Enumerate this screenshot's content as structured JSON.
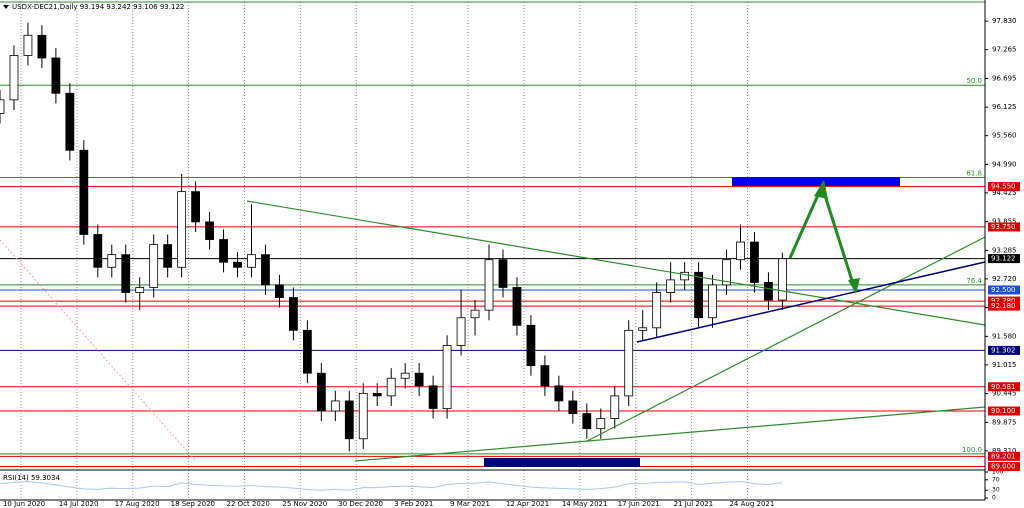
{
  "chart_data": {
    "type": "candlestick",
    "title": "USDX-DEC21,Daily  93.194 93.242 93.106 93.122",
    "x": [
      0,
      6,
      12,
      18,
      24,
      30,
      36,
      42,
      48,
      54,
      60,
      66,
      72,
      78,
      84,
      90,
      96,
      102,
      108,
      114,
      120,
      126,
      132,
      138,
      144,
      150,
      156,
      162,
      168,
      174,
      180,
      186,
      192,
      198,
      204,
      210,
      216,
      222,
      228,
      234,
      240,
      246,
      252,
      258,
      264,
      270,
      276,
      282,
      288,
      294,
      300,
      306,
      312,
      318,
      324,
      330,
      336
    ],
    "open": [
      96.0,
      96.27,
      97.15,
      97.55,
      97.1,
      96.4,
      95.27,
      93.6,
      92.95,
      93.2,
      92.45,
      92.55,
      93.4,
      92.95,
      94.45,
      93.85,
      93.5,
      93.05,
      92.95,
      93.2,
      92.6,
      92.35,
      91.7,
      90.85,
      90.1,
      90.3,
      89.55,
      90.45,
      90.4,
      90.75,
      90.85,
      90.6,
      90.15,
      91.4,
      91.95,
      92.1,
      93.1,
      92.55,
      91.8,
      91.0,
      90.6,
      90.3,
      90.05,
      89.75,
      89.95,
      90.4,
      91.7,
      91.75,
      92.45,
      92.7,
      92.85,
      91.95,
      92.6,
      93.1,
      93.45,
      92.65,
      92.3
    ],
    "high": [
      96.47,
      97.35,
      97.8,
      97.75,
      97.3,
      96.6,
      95.47,
      93.8,
      93.4,
      93.4,
      92.75,
      93.6,
      93.6,
      94.8,
      94.65,
      94.05,
      93.7,
      93.25,
      94.2,
      93.4,
      92.8,
      92.55,
      91.9,
      91.05,
      90.5,
      90.5,
      90.65,
      90.65,
      90.95,
      91.05,
      91.05,
      90.8,
      91.6,
      92.5,
      92.3,
      93.4,
      93.3,
      92.75,
      92.0,
      91.2,
      90.8,
      90.5,
      90.25,
      90.15,
      90.6,
      91.9,
      92.1,
      92.65,
      93.05,
      93.05,
      93.05,
      92.8,
      93.3,
      93.8,
      93.65,
      92.85,
      93.24
    ],
    "low": [
      95.8,
      96.07,
      96.95,
      96.9,
      96.2,
      95.07,
      93.4,
      92.75,
      92.75,
      92.25,
      92.1,
      92.35,
      92.75,
      92.75,
      93.65,
      93.3,
      92.85,
      92.75,
      92.75,
      92.4,
      92.15,
      91.5,
      90.65,
      89.9,
      89.9,
      89.3,
      89.35,
      90.2,
      90.2,
      90.55,
      90.4,
      89.95,
      89.95,
      91.2,
      91.6,
      91.9,
      92.35,
      91.6,
      90.8,
      90.4,
      90.1,
      89.85,
      89.55,
      89.55,
      89.75,
      90.2,
      91.5,
      91.55,
      92.25,
      92.5,
      91.75,
      91.75,
      92.4,
      92.9,
      92.45,
      92.1,
      92.1
    ],
    "close": [
      96.27,
      97.15,
      97.55,
      97.1,
      96.4,
      95.27,
      93.6,
      92.95,
      93.2,
      92.45,
      92.55,
      93.4,
      92.95,
      94.45,
      93.85,
      93.5,
      93.05,
      92.95,
      93.2,
      92.6,
      92.35,
      91.7,
      90.85,
      90.1,
      90.3,
      89.55,
      90.45,
      90.4,
      90.75,
      90.85,
      90.6,
      90.15,
      91.4,
      91.95,
      92.1,
      93.1,
      92.55,
      91.8,
      91.0,
      90.6,
      90.3,
      90.05,
      89.75,
      89.95,
      90.4,
      91.7,
      91.75,
      92.45,
      92.7,
      92.85,
      91.95,
      92.6,
      93.1,
      93.45,
      92.65,
      92.3,
      93.12
    ],
    "xlim": [
      0,
      423
    ],
    "xticks": [
      {
        "value": 9,
        "label": "10 Jun 2020"
      },
      {
        "value": 33,
        "label": "14 Jul 2020"
      },
      {
        "value": 57,
        "label": "17 Aug 2020"
      },
      {
        "value": 81,
        "label": "18 Sep 2020"
      },
      {
        "value": 105,
        "label": "22 Oct 2020"
      },
      {
        "value": 129,
        "label": "25 Nov 2020"
      },
      {
        "value": 153,
        "label": "30 Dec 2020"
      },
      {
        "value": 177,
        "label": "3 Feb 2021"
      },
      {
        "value": 201,
        "label": "9 Mar 2021"
      },
      {
        "value": 225,
        "label": "12 Apr 2021"
      },
      {
        "value": 249,
        "label": "14 May 2021"
      },
      {
        "value": 273,
        "label": "17 Jun 2021"
      },
      {
        "value": 297,
        "label": "21 Jul 2021"
      },
      {
        "value": 321,
        "label": "24 Aug 2021"
      }
    ],
    "ylim": [
      88.99,
      98.21
    ],
    "yticks": [
      {
        "value": 97.83,
        "label": "97.830"
      },
      {
        "value": 97.265,
        "label": "97.265"
      },
      {
        "value": 96.695,
        "label": "96.695"
      },
      {
        "value": 96.125,
        "label": "96.125"
      },
      {
        "value": 95.56,
        "label": "95.560"
      },
      {
        "value": 94.99,
        "label": "94.990"
      },
      {
        "value": 94.425,
        "label": "94.425"
      },
      {
        "value": 93.855,
        "label": "93.855"
      },
      {
        "value": 93.285,
        "label": "93.285"
      },
      {
        "value": 92.72,
        "label": "92.720"
      },
      {
        "value": 92.15,
        "label": "92.150"
      },
      {
        "value": 91.58,
        "label": "91.580"
      },
      {
        "value": 91.015,
        "label": "91.015"
      },
      {
        "value": 90.445,
        "label": "90.445"
      },
      {
        "value": 89.875,
        "label": "89.875"
      },
      {
        "value": 89.31,
        "label": "89.310"
      }
    ],
    "grid": true,
    "up_color": "#ffffff",
    "down_color": "#000000",
    "levels": [
      {
        "value": 94.55,
        "label": "94.550",
        "color": "#e00000"
      },
      {
        "value": 93.75,
        "label": "93.750",
        "color": "#e00000"
      },
      {
        "value": 93.122,
        "label": "93.122",
        "color": "#000000"
      },
      {
        "value": 92.5,
        "label": "92.500",
        "color": "#1a4fd6"
      },
      {
        "value": 92.28,
        "label": "92.280",
        "color": "#e00000"
      },
      {
        "value": 92.18,
        "label": "92.180",
        "color": "#e00000"
      },
      {
        "value": 91.302,
        "label": "91.302",
        "color": "#000080"
      },
      {
        "value": 90.581,
        "label": "90.581",
        "color": "#e00000"
      },
      {
        "value": 90.1,
        "label": "90.100",
        "color": "#e00000"
      },
      {
        "value": 89.201,
        "label": "89.201",
        "color": "#e00000"
      },
      {
        "value": 89.0,
        "label": "89.000",
        "color": "#e00000"
      }
    ],
    "fib_levels": [
      {
        "value": 96.56,
        "label": "50.0"
      },
      {
        "value": 94.73,
        "label": "61.8"
      },
      {
        "value": 92.6,
        "label": "76.4"
      },
      {
        "value": 89.25,
        "label": "100.0"
      }
    ],
    "fib_color": "#2e8b2e",
    "rsi": {
      "title": "RSI(14) 59.3034",
      "ylim": [
        0,
        100
      ],
      "yticks": [
        100,
        70,
        30,
        0
      ],
      "color": "#a8c8f0",
      "values": [
        55,
        60,
        63,
        58,
        50,
        42,
        35,
        33,
        38,
        36,
        38,
        46,
        44,
        58,
        52,
        49,
        46,
        45,
        48,
        44,
        42,
        38,
        33,
        30,
        33,
        30,
        40,
        40,
        44,
        45,
        43,
        40,
        52,
        56,
        57,
        62,
        55,
        48,
        42,
        39,
        37,
        35,
        33,
        36,
        42,
        55,
        55,
        60,
        61,
        62,
        52,
        57,
        61,
        63,
        55,
        52,
        59.3034
      ]
    }
  }
}
